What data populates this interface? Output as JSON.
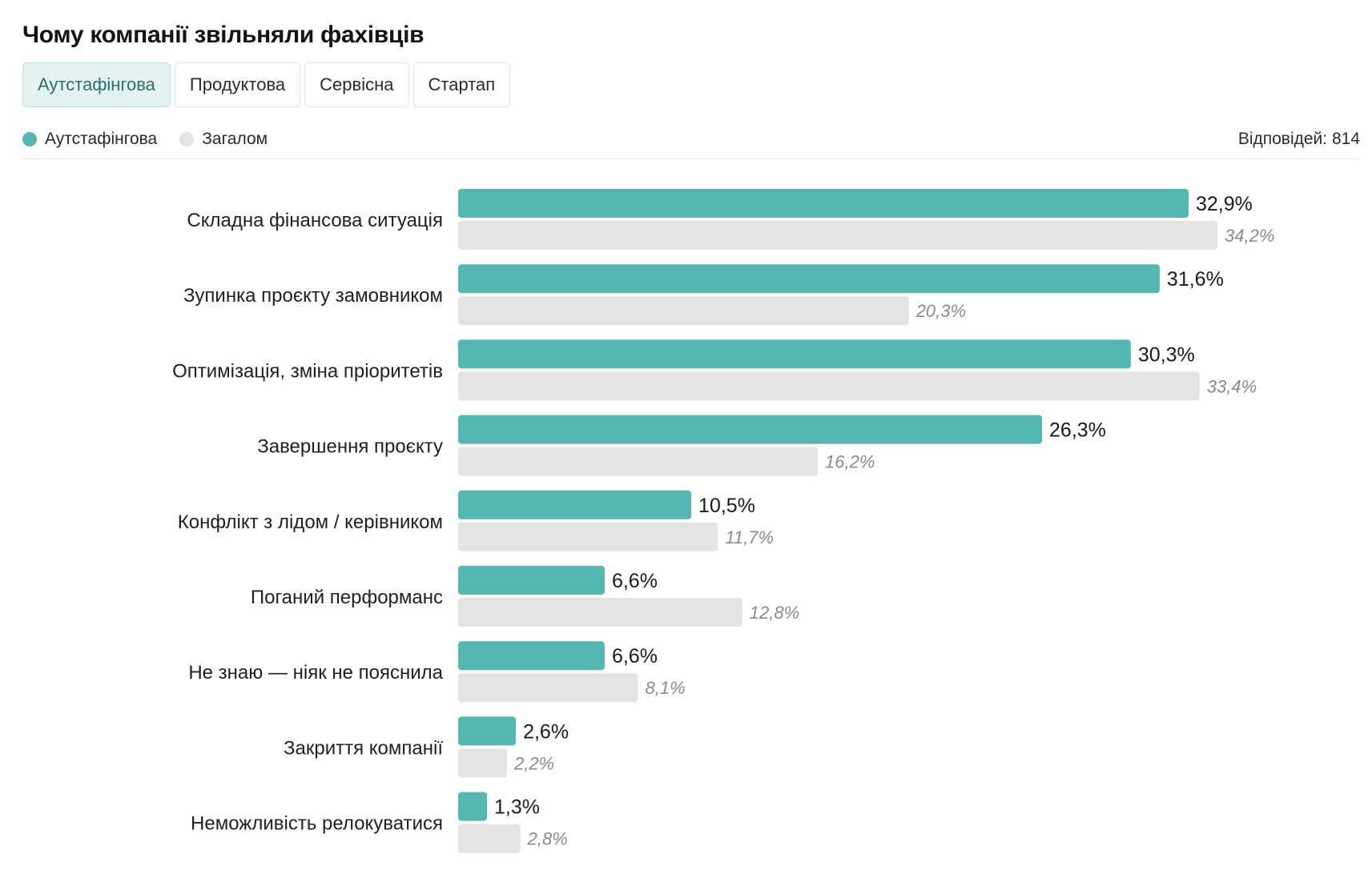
{
  "title": "Чому компанії звільняли фахівців",
  "tabs": [
    {
      "label": "Аутстафінгова",
      "active": true
    },
    {
      "label": "Продуктова",
      "active": false
    },
    {
      "label": "Сервісна",
      "active": false
    },
    {
      "label": "Стартап",
      "active": false
    }
  ],
  "legend": {
    "primary": {
      "label": "Аутстафінгова",
      "color": "#55b7b1"
    },
    "secondary": {
      "label": "Загалом",
      "color": "#e3e3e3"
    }
  },
  "responses_text": "Відповідей: 814",
  "chart_data": {
    "type": "bar",
    "orientation": "horizontal",
    "categories": [
      "Складна фінансова ситуація",
      "Зупинка проєкту замовником",
      "Оптимізація, зміна пріоритетів",
      "Завершення проєкту",
      "Конфлікт з лідом / керівником",
      "Поганий перформанс",
      "Не знаю — ніяк не пояснила",
      "Закриття компанії",
      "Неможливість релокуватися"
    ],
    "series": [
      {
        "name": "Аутстафінгова",
        "color": "#55b7b1",
        "values": [
          32.9,
          31.6,
          30.3,
          26.3,
          10.5,
          6.6,
          6.6,
          2.6,
          1.3
        ],
        "labels": [
          "32,9%",
          "31,6%",
          "30,3%",
          "26,3%",
          "10,5%",
          "6,6%",
          "6,6%",
          "2,6%",
          "1,3%"
        ]
      },
      {
        "name": "Загалом",
        "color": "#e3e3e3",
        "values": [
          34.2,
          20.3,
          33.4,
          16.2,
          11.7,
          12.8,
          8.1,
          2.2,
          2.8
        ],
        "labels": [
          "34,2%",
          "20,3%",
          "33,4%",
          "16,2%",
          "11,7%",
          "12,8%",
          "8,1%",
          "2,2%",
          "2,8%"
        ]
      }
    ],
    "xlim": [
      0,
      34.2
    ],
    "grid": false,
    "legend_position": "top-left"
  }
}
